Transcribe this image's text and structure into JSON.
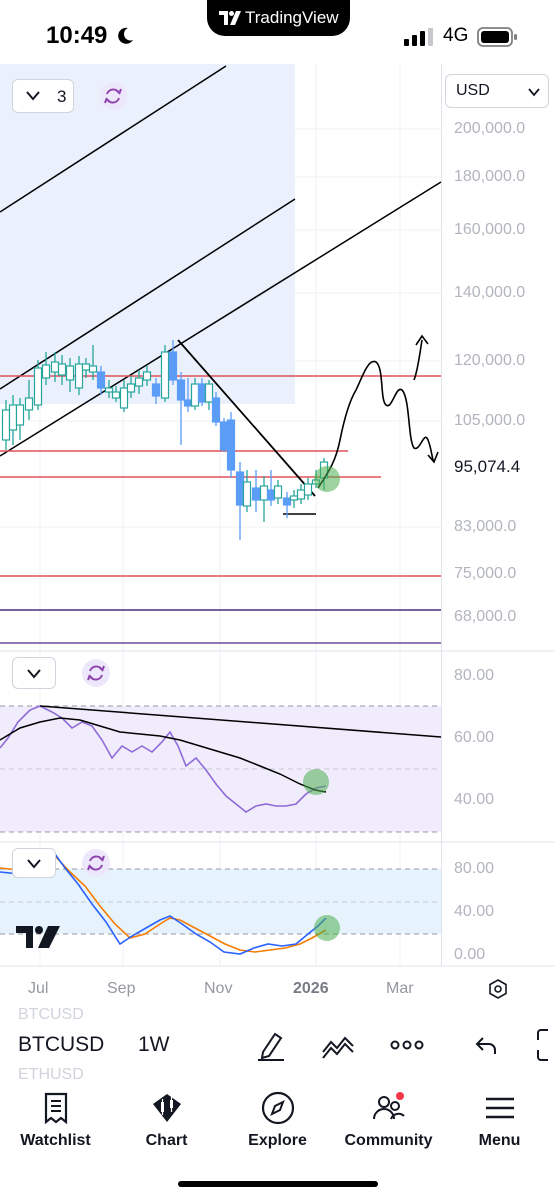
{
  "status": {
    "time": "10:49",
    "network": "4G",
    "app_banner": "TradingView"
  },
  "chart": {
    "currency": "USD",
    "layout_count": "3",
    "price_axis": [
      "200,000.0",
      "180,000.0",
      "160,000.0",
      "140,000.0",
      "120,000.0",
      "105,000.0",
      "83,000.0",
      "75,000.0",
      "68,000.0"
    ],
    "current_price": "95,074.4",
    "time_axis": [
      "Jul",
      "Sep",
      "Nov",
      "2026",
      "Mar"
    ]
  },
  "rsi_pane": {
    "axis": [
      "80.00",
      "60.00",
      "40.00"
    ]
  },
  "stoch_pane": {
    "axis": [
      "80.00",
      "40.00",
      "0.00"
    ]
  },
  "toolbar": {
    "symbol": "BTCUSD",
    "interval": "1W",
    "ghost_symbol_above": "BTCUSD",
    "ghost_symbol_below": "ETHUSD"
  },
  "tabs": [
    {
      "label": "Watchlist",
      "icon": "watchlist-icon"
    },
    {
      "label": "Chart",
      "icon": "chart-icon"
    },
    {
      "label": "Explore",
      "icon": "compass-icon"
    },
    {
      "label": "Community",
      "icon": "community-icon"
    },
    {
      "label": "Menu",
      "icon": "menu-icon"
    }
  ],
  "colors": {
    "bull": "#26a69a",
    "bear": "#5b9cf6",
    "resistance": "#e0505a",
    "support_dark": "#4a2c7a",
    "rsi": "#8e6bd8",
    "stoch_k": "#2962ff",
    "stoch_d": "#f57c00",
    "highlight": "#4caf50"
  }
}
